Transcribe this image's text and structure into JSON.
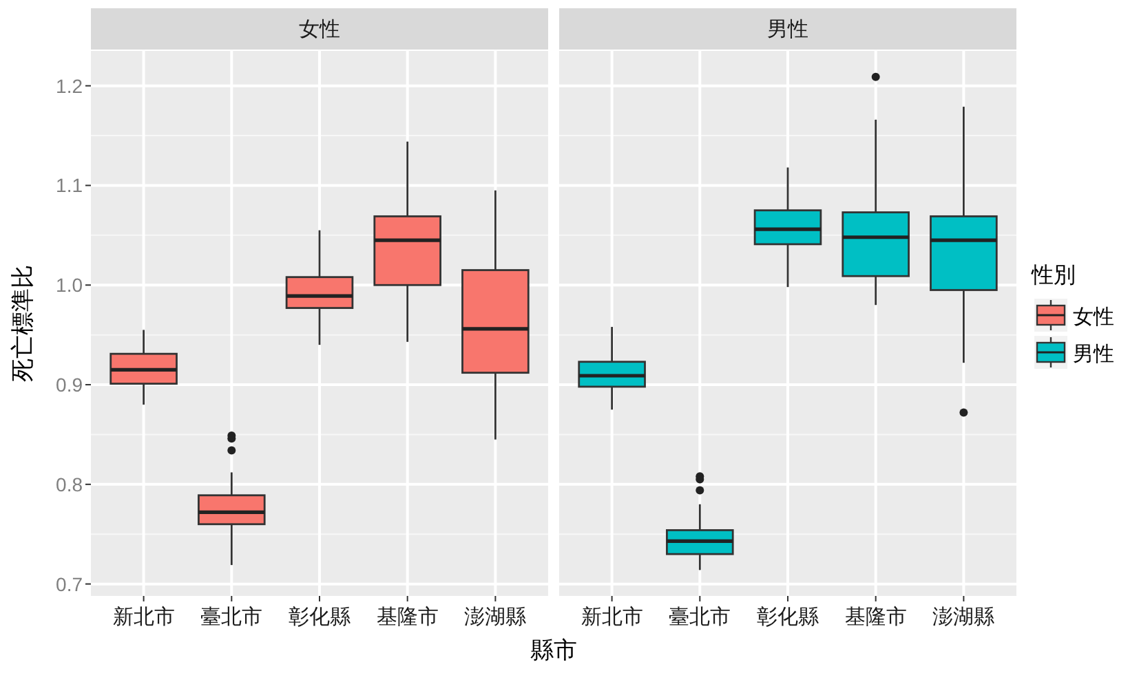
{
  "chart_data": [
    {
      "type": "box",
      "title": "女性",
      "ylabel": "死亡標準比",
      "xlabel": "縣市",
      "categories": [
        "新北市",
        "臺北市",
        "彰化縣",
        "基隆市",
        "澎湖縣"
      ],
      "ylim": [
        0.688,
        1.235
      ],
      "yticks": [
        0.7,
        0.8,
        0.9,
        {
          "value": 1.0,
          "label": "1.0"
        },
        1.1,
        1.2
      ],
      "grid": true,
      "legend": "right",
      "series": [
        {
          "name": "女性",
          "color": "#f8766d",
          "boxes": [
            {
              "low": 0.88,
              "q1": 0.901,
              "median": 0.915,
              "q3": 0.931,
              "high": 0.955
            },
            {
              "low": 0.719,
              "q1": 0.76,
              "median": 0.772,
              "q3": 0.789,
              "high": 0.812,
              "outliers": [
                0.849,
                0.846,
                0.834
              ]
            },
            {
              "low": 0.94,
              "q1": 0.977,
              "median": 0.989,
              "q3": 1.008,
              "high": 1.055
            },
            {
              "low": 0.943,
              "q1": 1.0,
              "median": 1.045,
              "q3": 1.069,
              "high": 1.144
            },
            {
              "low": 0.845,
              "q1": 0.912,
              "median": 0.956,
              "q3": 1.015,
              "high": 1.095
            }
          ]
        }
      ]
    },
    {
      "type": "box",
      "title": "男性",
      "legend_title": "性別",
      "categories": [
        "新北市",
        "臺北市",
        "彰化縣",
        "基隆市",
        "澎湖縣"
      ],
      "ylim": [
        0.688,
        1.235
      ],
      "yticks": [
        0.7,
        0.8,
        0.9,
        1.0,
        1.1,
        1.2
      ],
      "grid": true,
      "legend": "right",
      "tick_labels": "x",
      "series": [
        {
          "name": "男性",
          "color": "#00bfc4",
          "boxes": [
            {
              "low": 0.875,
              "q1": 0.898,
              "median": 0.909,
              "q3": 0.923,
              "high": 0.958
            },
            {
              "low": 0.714,
              "q1": 0.73,
              "median": 0.743,
              "q3": 0.754,
              "high": 0.78,
              "outliers": [
                0.808,
                0.805,
                0.794
              ]
            },
            {
              "low": 0.998,
              "q1": 1.041,
              "median": 1.056,
              "q3": 1.075,
              "high": 1.118
            },
            {
              "low": 0.98,
              "q1": 1.009,
              "median": 1.048,
              "q3": 1.073,
              "high": 1.166,
              "outliers": [
                1.209
              ]
            },
            {
              "low": 0.922,
              "q1": 0.995,
              "median": 1.045,
              "q3": 1.069,
              "high": 1.179,
              "outliers": [
                0.872
              ]
            }
          ]
        }
      ]
    }
  ]
}
